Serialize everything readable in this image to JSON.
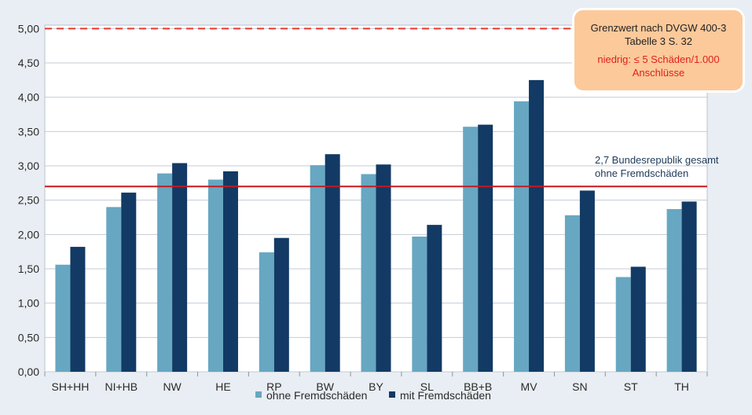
{
  "chart_data": {
    "type": "bar",
    "categories": [
      "SH+HH",
      "NI+HB",
      "NW",
      "HE",
      "RP",
      "BW",
      "BY",
      "SL",
      "BB+B",
      "MV",
      "SN",
      "ST",
      "TH"
    ],
    "series": [
      {
        "name": "ohne Fremdschäden",
        "color": "#67a7c1",
        "values": [
          1.56,
          2.4,
          2.89,
          2.8,
          1.74,
          3.01,
          2.88,
          1.97,
          3.57,
          3.94,
          2.28,
          1.38,
          2.37
        ]
      },
      {
        "name": "mit Fremdschäden",
        "color": "#123a64",
        "values": [
          1.82,
          2.61,
          3.04,
          2.92,
          1.95,
          3.17,
          3.02,
          2.14,
          3.6,
          4.25,
          2.64,
          1.53,
          2.48
        ]
      }
    ],
    "yticks": [
      "0,00",
      "0,50",
      "1,00",
      "1,50",
      "2,00",
      "2,50",
      "3,00",
      "3,50",
      "4,00",
      "4,50",
      "5,00"
    ],
    "ylim": [
      0,
      5.05
    ],
    "grid": true,
    "legend_position": "bottom",
    "reference_lines": [
      {
        "value": 5.0,
        "style": "dashed",
        "color": "#e8382f"
      },
      {
        "value": 2.7,
        "style": "solid",
        "color": "#c8191e",
        "label_line1": "2,7 Bundesrepublik gesamt",
        "label_line2": "ohne Fremdschäden"
      }
    ],
    "annotation_box": {
      "line1": "Grenzwert nach DVGW 400-3",
      "line2": "Tabelle 3 S. 32",
      "line3": "niedrig: ≤ 5 Schäden/1.000",
      "line4": "Anschlüsse"
    }
  }
}
